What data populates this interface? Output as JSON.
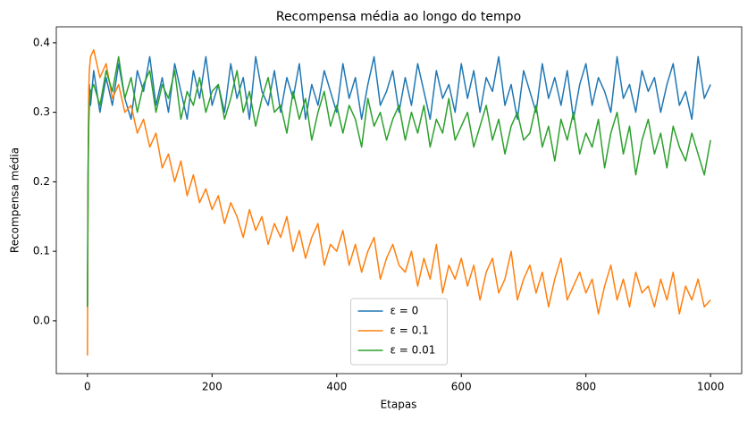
{
  "chart_data": {
    "type": "line",
    "title": "Recompensa média ao longo do tempo",
    "x_label": "Etapas",
    "y_label": "Recompensa média",
    "x": [
      0,
      1,
      2,
      3,
      5,
      10,
      20,
      30,
      40,
      50,
      60,
      70,
      80,
      90,
      100,
      110,
      120,
      130,
      140,
      150,
      160,
      170,
      180,
      190,
      200,
      210,
      220,
      230,
      240,
      250,
      260,
      270,
      280,
      290,
      300,
      310,
      320,
      330,
      340,
      350,
      360,
      370,
      380,
      390,
      400,
      410,
      420,
      430,
      440,
      450,
      460,
      470,
      480,
      490,
      500,
      510,
      520,
      530,
      540,
      550,
      560,
      570,
      580,
      590,
      600,
      610,
      620,
      630,
      640,
      650,
      660,
      670,
      680,
      690,
      700,
      710,
      720,
      730,
      740,
      750,
      760,
      770,
      780,
      790,
      800,
      810,
      820,
      830,
      840,
      850,
      860,
      870,
      880,
      890,
      900,
      910,
      920,
      930,
      940,
      950,
      960,
      970,
      980,
      990,
      1000
    ],
    "series": [
      {
        "name": "ε = 0",
        "color": "#1f77b4",
        "values": [
          0.02,
          0.22,
          0.3,
          0.34,
          0.31,
          0.36,
          0.3,
          0.35,
          0.31,
          0.37,
          0.32,
          0.29,
          0.36,
          0.33,
          0.38,
          0.31,
          0.35,
          0.3,
          0.37,
          0.33,
          0.29,
          0.36,
          0.32,
          0.38,
          0.31,
          0.34,
          0.3,
          0.37,
          0.32,
          0.35,
          0.29,
          0.38,
          0.33,
          0.31,
          0.36,
          0.3,
          0.35,
          0.32,
          0.37,
          0.29,
          0.34,
          0.31,
          0.36,
          0.33,
          0.3,
          0.37,
          0.32,
          0.35,
          0.29,
          0.34,
          0.38,
          0.31,
          0.33,
          0.36,
          0.3,
          0.35,
          0.31,
          0.37,
          0.33,
          0.29,
          0.36,
          0.32,
          0.34,
          0.3,
          0.37,
          0.32,
          0.36,
          0.3,
          0.35,
          0.33,
          0.38,
          0.31,
          0.34,
          0.29,
          0.36,
          0.33,
          0.3,
          0.37,
          0.32,
          0.35,
          0.31,
          0.36,
          0.29,
          0.34,
          0.37,
          0.31,
          0.35,
          0.33,
          0.3,
          0.38,
          0.32,
          0.34,
          0.3,
          0.36,
          0.33,
          0.35,
          0.3,
          0.34,
          0.37,
          0.31,
          0.33,
          0.29,
          0.38,
          0.32,
          0.34
        ]
      },
      {
        "name": "ε = 0.1",
        "color": "#ff7f0e",
        "values": [
          -0.05,
          0.2,
          0.33,
          0.36,
          0.38,
          0.39,
          0.35,
          0.37,
          0.32,
          0.34,
          0.3,
          0.31,
          0.27,
          0.29,
          0.25,
          0.27,
          0.22,
          0.24,
          0.2,
          0.23,
          0.18,
          0.21,
          0.17,
          0.19,
          0.16,
          0.18,
          0.14,
          0.17,
          0.15,
          0.12,
          0.16,
          0.13,
          0.15,
          0.11,
          0.14,
          0.12,
          0.15,
          0.1,
          0.13,
          0.09,
          0.12,
          0.14,
          0.08,
          0.11,
          0.1,
          0.13,
          0.08,
          0.11,
          0.07,
          0.1,
          0.12,
          0.06,
          0.09,
          0.11,
          0.08,
          0.07,
          0.1,
          0.05,
          0.09,
          0.06,
          0.11,
          0.04,
          0.08,
          0.06,
          0.09,
          0.05,
          0.08,
          0.03,
          0.07,
          0.09,
          0.04,
          0.06,
          0.1,
          0.03,
          0.06,
          0.08,
          0.04,
          0.07,
          0.02,
          0.06,
          0.09,
          0.03,
          0.05,
          0.07,
          0.04,
          0.06,
          0.01,
          0.05,
          0.08,
          0.03,
          0.06,
          0.02,
          0.07,
          0.04,
          0.05,
          0.02,
          0.06,
          0.03,
          0.07,
          0.01,
          0.05,
          0.03,
          0.06,
          0.02,
          0.03
        ]
      },
      {
        "name": "ε = 0.01",
        "color": "#2ca02c",
        "values": [
          0.02,
          0.2,
          0.28,
          0.31,
          0.33,
          0.34,
          0.31,
          0.36,
          0.33,
          0.38,
          0.32,
          0.35,
          0.3,
          0.34,
          0.36,
          0.3,
          0.34,
          0.32,
          0.36,
          0.29,
          0.33,
          0.31,
          0.35,
          0.3,
          0.33,
          0.34,
          0.29,
          0.32,
          0.36,
          0.3,
          0.33,
          0.28,
          0.32,
          0.35,
          0.3,
          0.31,
          0.27,
          0.33,
          0.29,
          0.32,
          0.26,
          0.3,
          0.33,
          0.28,
          0.31,
          0.27,
          0.31,
          0.29,
          0.25,
          0.32,
          0.28,
          0.3,
          0.26,
          0.29,
          0.31,
          0.26,
          0.3,
          0.27,
          0.31,
          0.25,
          0.29,
          0.27,
          0.32,
          0.26,
          0.28,
          0.3,
          0.25,
          0.28,
          0.31,
          0.26,
          0.29,
          0.24,
          0.28,
          0.3,
          0.26,
          0.27,
          0.31,
          0.25,
          0.28,
          0.23,
          0.29,
          0.26,
          0.3,
          0.24,
          0.27,
          0.25,
          0.29,
          0.22,
          0.27,
          0.3,
          0.24,
          0.28,
          0.21,
          0.26,
          0.29,
          0.24,
          0.27,
          0.22,
          0.28,
          0.25,
          0.23,
          0.27,
          0.24,
          0.21,
          0.26
        ]
      }
    ],
    "xlim": [
      -50,
      1050
    ],
    "xticks": [
      0,
      200,
      400,
      600,
      800,
      1000
    ],
    "ylim": [
      -0.076,
      0.423
    ],
    "yticks": [
      {
        "value": 0,
        "label": "0.0"
      },
      0.1,
      0.2,
      0.3,
      0.4
    ],
    "legend": "lower center"
  }
}
